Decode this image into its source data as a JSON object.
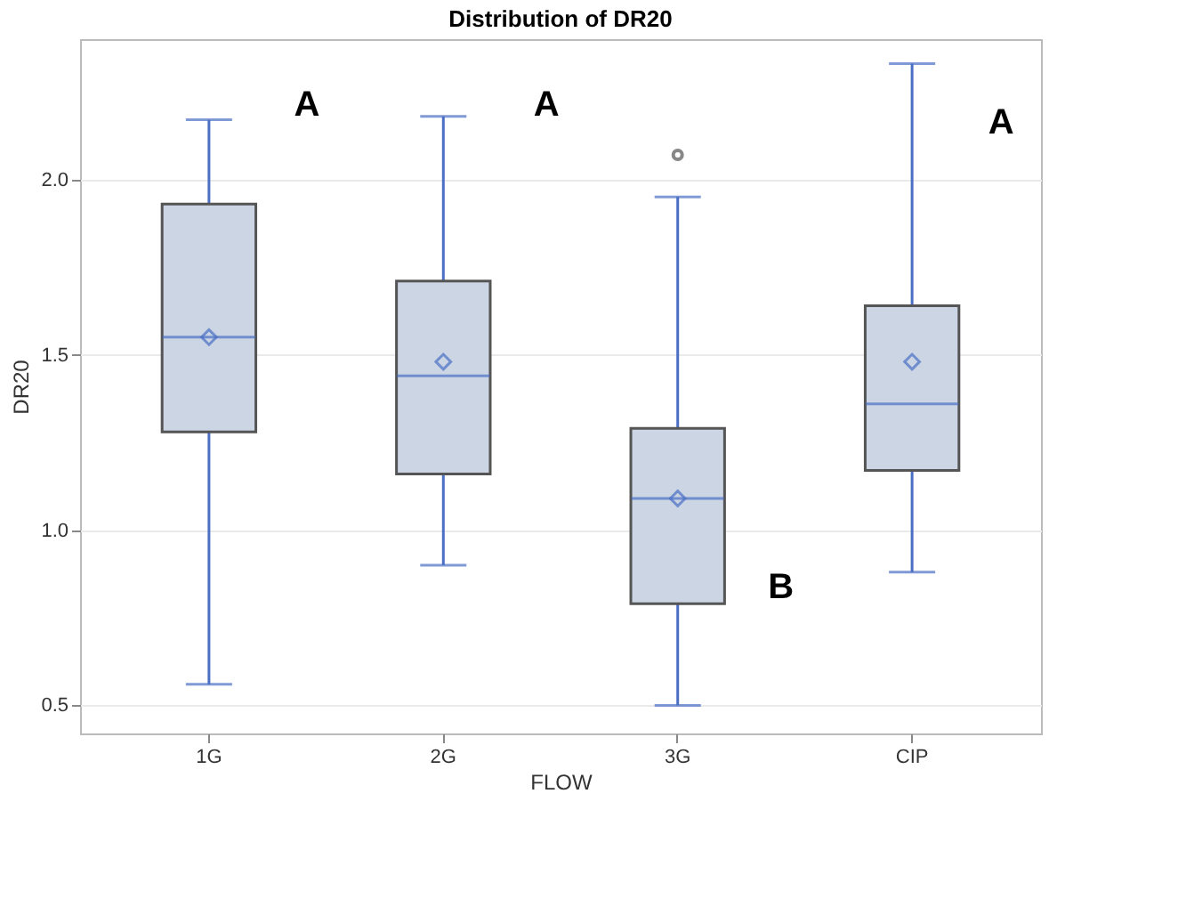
{
  "chart_data": {
    "type": "box",
    "title": "Distribution of DR20",
    "xlabel": "FLOW",
    "ylabel": "DR20",
    "categories": [
      "1G",
      "2G",
      "3G",
      "CIP"
    ],
    "boxes": [
      {
        "low": 0.56,
        "q1": 1.28,
        "median": 1.55,
        "q3": 1.93,
        "high": 2.17,
        "mean": 1.55
      },
      {
        "low": 0.9,
        "q1": 1.16,
        "median": 1.44,
        "q3": 1.71,
        "high": 2.18,
        "mean": 1.48
      },
      {
        "low": 0.5,
        "q1": 0.79,
        "median": 1.09,
        "q3": 1.29,
        "high": 1.95,
        "mean": 1.09,
        "outliers": [
          2.07
        ]
      },
      {
        "low": 0.88,
        "q1": 1.17,
        "median": 1.36,
        "q3": 1.64,
        "high": 2.33,
        "mean": 1.48
      }
    ],
    "color": "#cbd5e4",
    "ylim": [
      0.42,
      2.4
    ],
    "yticks": [
      0.5,
      {
        "value": 1.0,
        "label": "1.0"
      },
      {
        "value": 1.5,
        "label": "1.5"
      },
      {
        "value": 2.0,
        "label": "2.0"
      }
    ],
    "grid": "y",
    "annotations": [
      "A",
      "A",
      "B",
      "A"
    ]
  }
}
